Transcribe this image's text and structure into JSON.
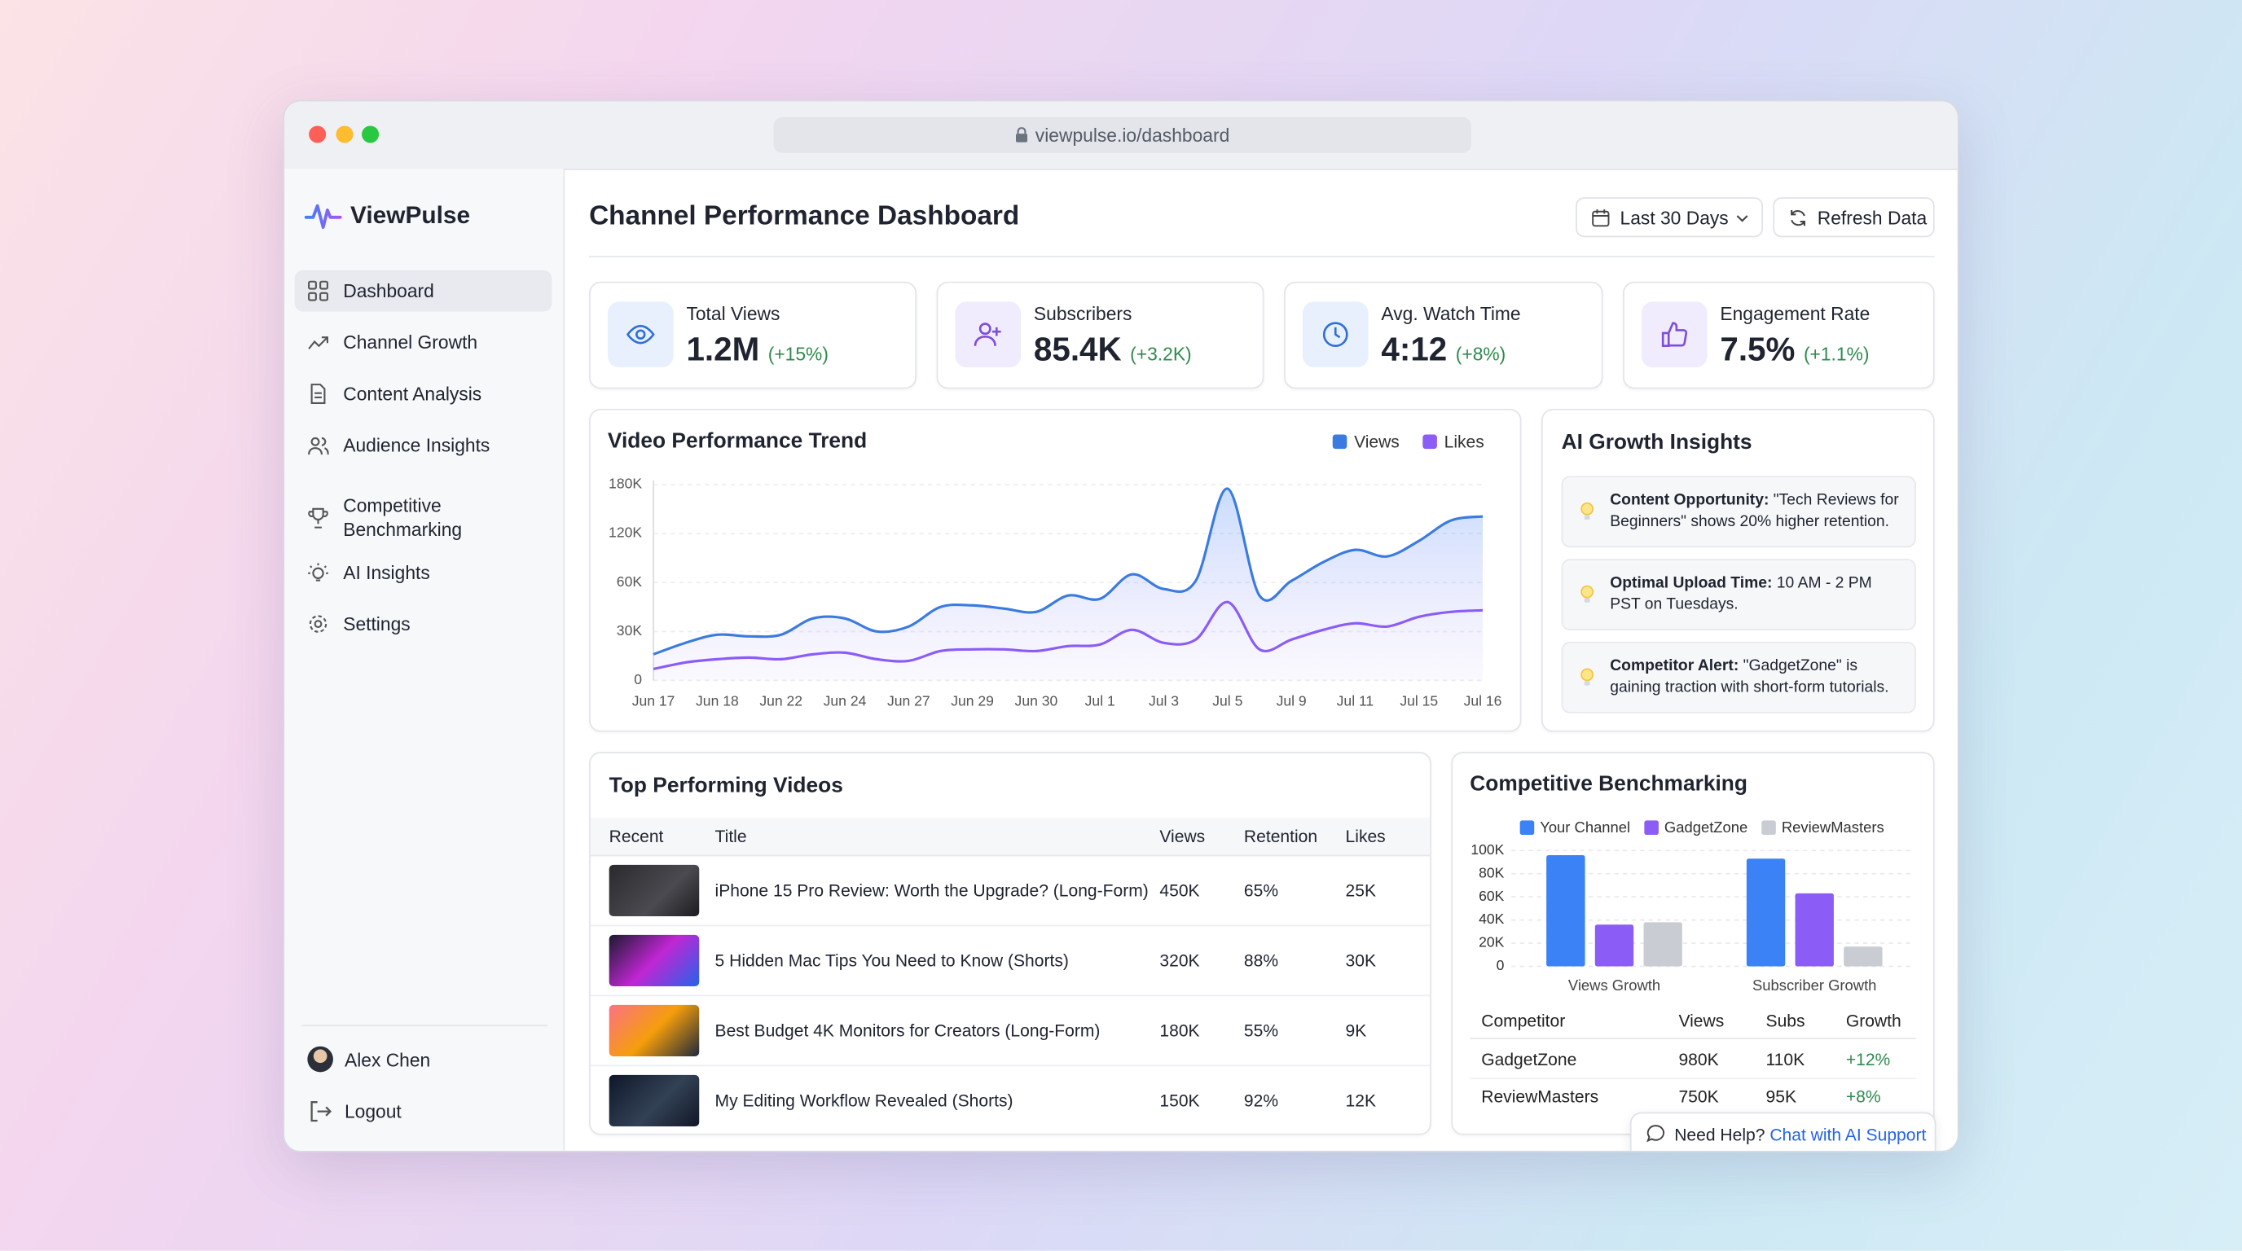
{
  "browser": {
    "url": "viewpulse.io/dashboard"
  },
  "sidebar": {
    "brand": "ViewPulse",
    "nav": [
      "Dashboard",
      "Channel Growth",
      "Content Analysis",
      "Audience Insights",
      "Competitive Benchmarking",
      "AI Insights",
      "Settings"
    ],
    "user": "Alex Chen",
    "logout": "Logout"
  },
  "header": {
    "title": "Channel Performance Dashboard",
    "range": "Last 30 Days",
    "refresh": "Refresh Data"
  },
  "kpis": [
    {
      "label": "Total Views",
      "value": "1.2M",
      "change": "(+15%)"
    },
    {
      "label": "Subscribers",
      "value": "85.4K",
      "change": "(+3.2K)"
    },
    {
      "label": "Avg. Watch Time",
      "value": "4:12",
      "change": "(+8%)"
    },
    {
      "label": "Engagement Rate",
      "value": "7.5%",
      "change": "(+1.1%)"
    }
  ],
  "trend_chart": {
    "type": "line",
    "title": "Video Performance Trend",
    "categories": [
      "Jun 17",
      null,
      "Jun 18",
      null,
      "Jun 22",
      null,
      "Jun 24",
      null,
      "Jun 27",
      null,
      "Jun 29",
      null,
      "Jun 30",
      null,
      "Jul 1",
      null,
      "Jul 3",
      null,
      "Jul 5",
      null,
      "Jul 9",
      null,
      "Jul 11",
      null,
      "Jul 15",
      null,
      "Jul 16"
    ],
    "series": [
      {
        "name": "Views",
        "color": "#3b7be0",
        "values": [
          16000,
          23000,
          28000,
          27000,
          28000,
          38000,
          38000,
          30000,
          33000,
          45000,
          46000,
          44000,
          42000,
          52000,
          50000,
          70000,
          56000,
          62000,
          175000,
          52000,
          62000,
          85000,
          100000,
          92000,
          111000,
          136000,
          141000
        ]
      },
      {
        "name": "Likes",
        "color": "#8b5cf6",
        "values": [
          7000,
          11000,
          13000,
          14000,
          13000,
          16000,
          17000,
          13000,
          12000,
          18000,
          19000,
          19000,
          18000,
          21000,
          22000,
          31000,
          23000,
          25000,
          48000,
          19000,
          25000,
          31000,
          35000,
          33000,
          39000,
          42000,
          43000
        ]
      }
    ],
    "ylim": [
      0,
      180000
    ],
    "yticks": [
      0,
      {
        "value": 30000,
        "label": "30K"
      },
      {
        "value": 60000,
        "label": "60K"
      },
      {
        "value": 120000,
        "label": "120K"
      },
      {
        "value": 180000,
        "label": "180K"
      }
    ],
    "grid": true
  },
  "insights": {
    "title": "AI Growth Insights",
    "items": [
      {
        "title": "Content Opportunity:",
        "text": "\"Tech Reviews for Beginners\" shows 20% higher retention."
      },
      {
        "title": "Optimal Upload Time:",
        "text": "10 AM - 2 PM PST on Tuesdays."
      },
      {
        "title": "Competitor Alert:",
        "text": "\"GadgetZone\" is gaining traction with short-form tutorials."
      }
    ]
  },
  "top_videos": {
    "title": "Top Performing Videos",
    "columns": [
      "Recent",
      "Title",
      "Views",
      "Retention",
      "Likes"
    ],
    "rows": [
      [
        "iPhone 15 Pro Review: Worth the Upgrade? (Long-Form)",
        "450K",
        "65%",
        "25K"
      ],
      [
        "5 Hidden Mac Tips You Need to Know (Shorts)",
        "320K",
        "88%",
        "30K"
      ],
      [
        "Best Budget 4K Monitors for Creators (Long-Form)",
        "180K",
        "55%",
        "9K"
      ],
      [
        "My Editing Workflow Revealed (Shorts)",
        "150K",
        "92%",
        "12K"
      ]
    ]
  },
  "benchmark_chart": {
    "type": "bar",
    "title": "Competitive Benchmarking",
    "categories": [
      "Views Growth",
      "Subscriber Growth"
    ],
    "series": [
      {
        "name": "Your Channel",
        "color": "#3b82f6",
        "values": [
          96000,
          93000
        ]
      },
      {
        "name": "GadgetZone",
        "color": "#8b5cf6",
        "values": [
          36000,
          63000
        ]
      },
      {
        "name": "ReviewMasters",
        "color": "#c9ccd3",
        "values": [
          38000,
          17000
        ]
      }
    ],
    "ylim": [
      0,
      100000
    ],
    "yticks": [
      0,
      {
        "value": 20000,
        "label": "20K"
      },
      {
        "value": 40000,
        "label": "40K"
      },
      {
        "value": 60000,
        "label": "60K"
      },
      {
        "value": 80000,
        "label": "80K"
      },
      {
        "value": 100000,
        "label": "100K"
      }
    ],
    "grid": true,
    "table": {
      "columns": [
        "Competitor",
        "Views",
        "Subs",
        "Growth"
      ],
      "rows": [
        [
          "GadgetZone",
          "980K",
          "110K",
          "+12%"
        ],
        [
          "ReviewMasters",
          "750K",
          "95K",
          "+8%"
        ]
      ]
    }
  },
  "help": {
    "prefix": "Need Help?",
    "link": "Chat with AI Support"
  }
}
